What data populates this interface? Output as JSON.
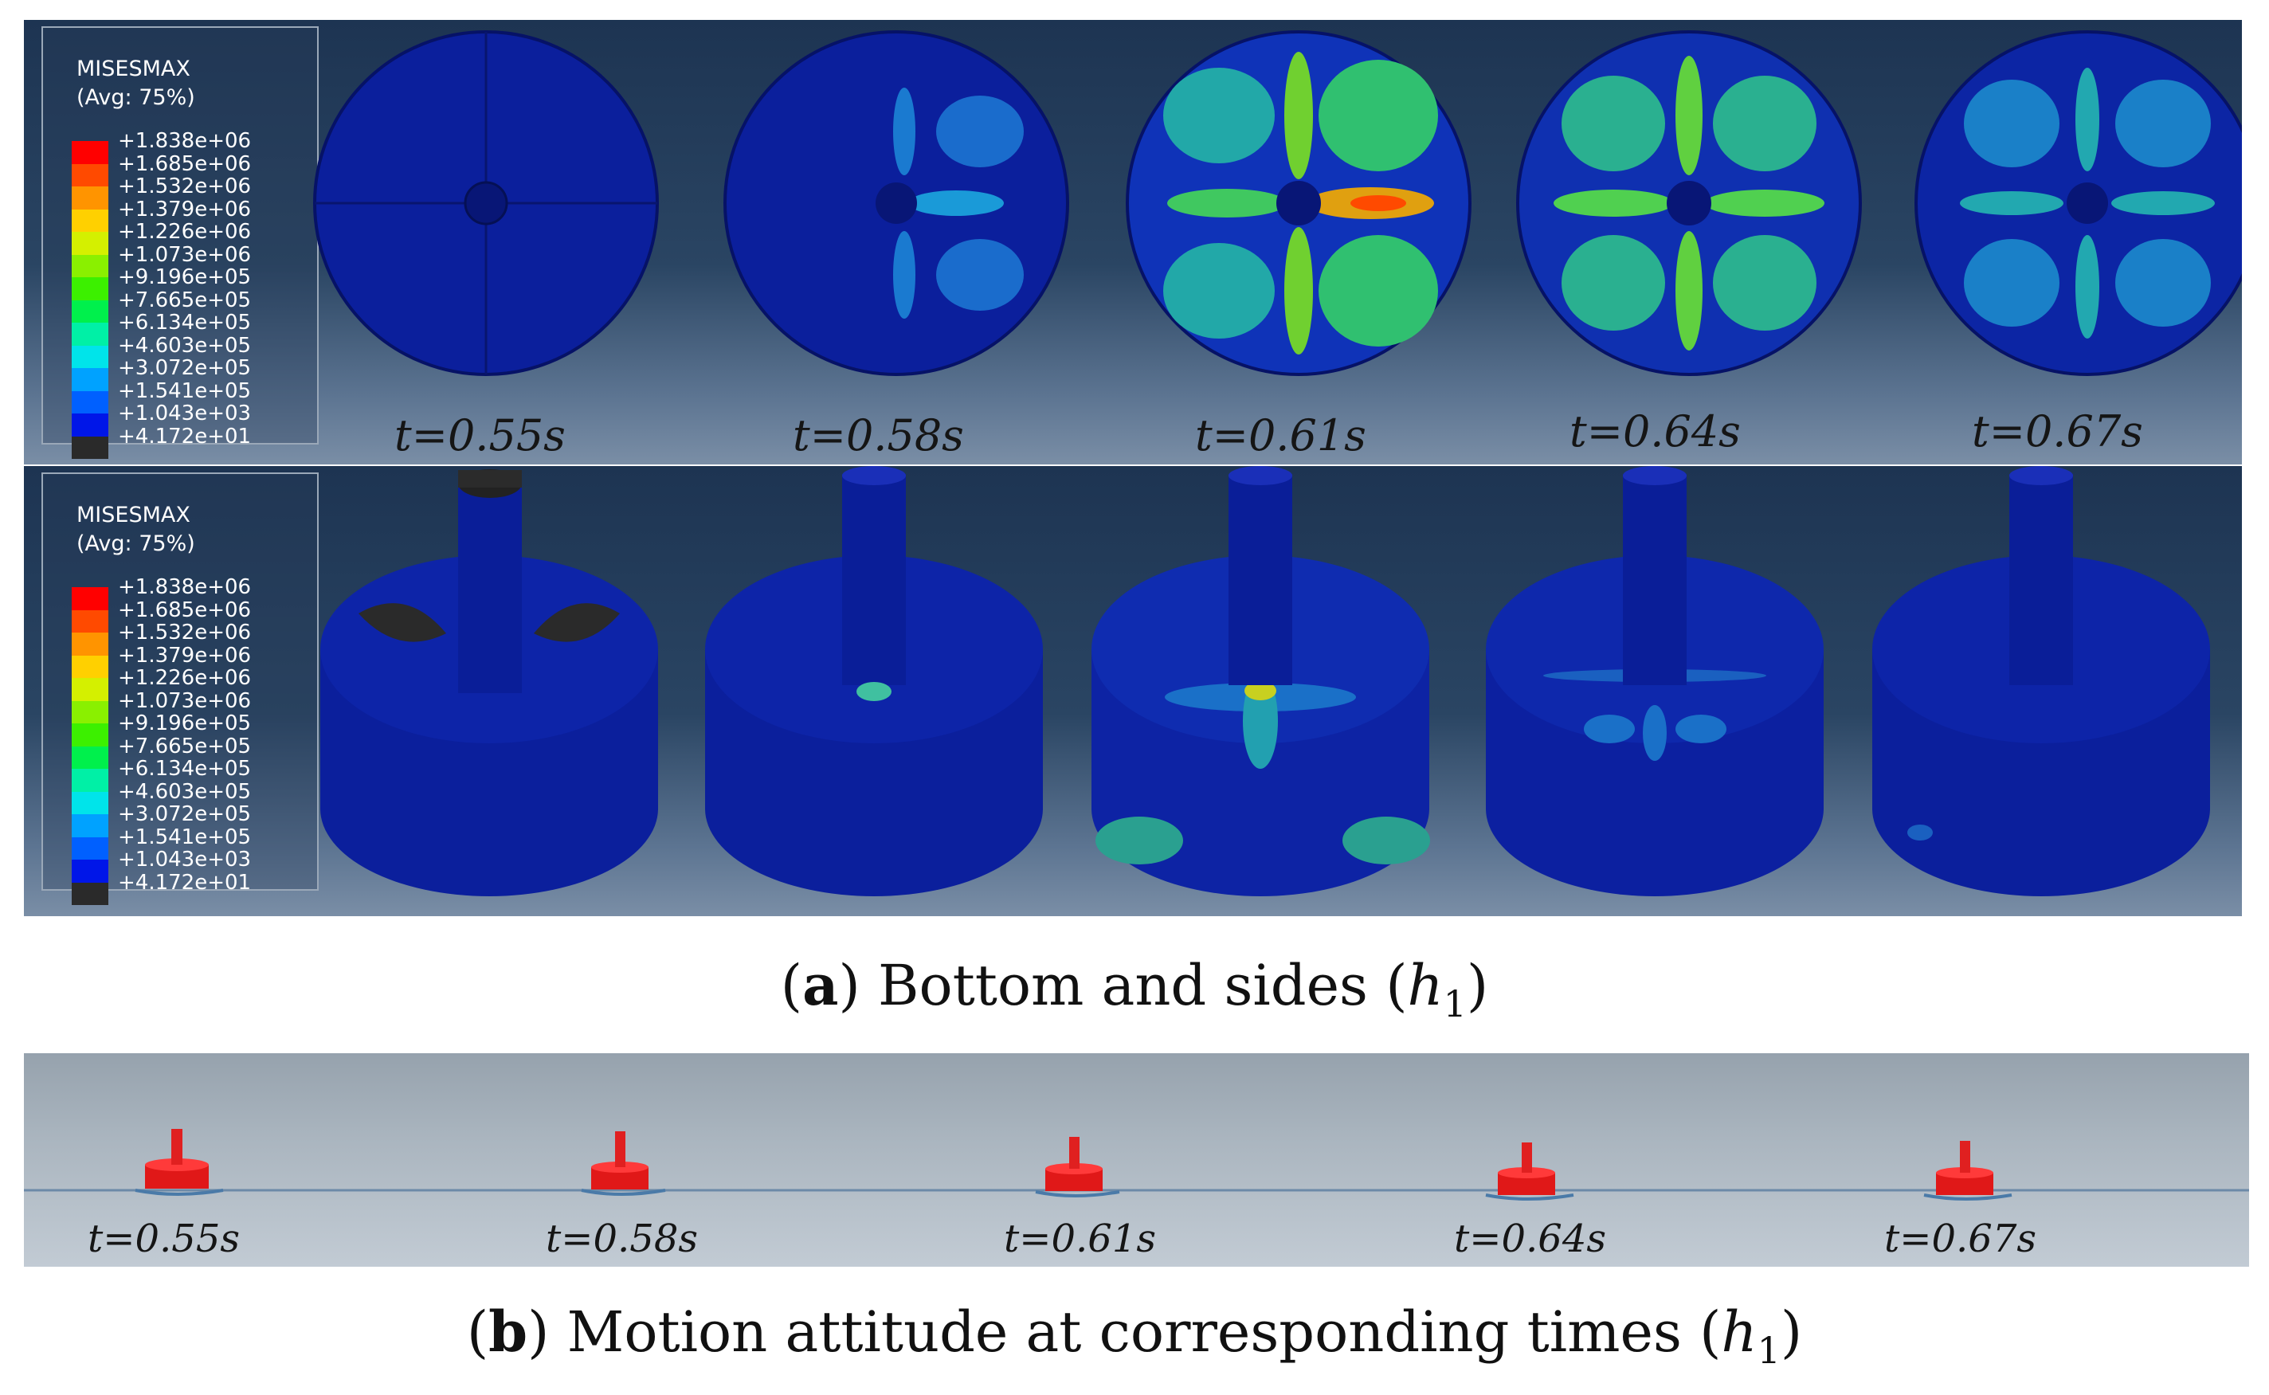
{
  "figure": {
    "legend": {
      "title": "MISESMAX",
      "subtitle": "(Avg: 75%)",
      "values": [
        "+1.838e+06",
        "+1.685e+06",
        "+1.532e+06",
        "+1.379e+06",
        "+1.226e+06",
        "+1.073e+06",
        "+9.196e+05",
        "+7.665e+05",
        "+6.134e+05",
        "+4.603e+05",
        "+3.072e+05",
        "+1.541e+05",
        "+1.043e+03",
        "+4.172e+01"
      ],
      "colors": [
        "#ff0000",
        "#ff4a00",
        "#ff9400",
        "#ffd000",
        "#d4f000",
        "#8af000",
        "#3cf000",
        "#00f04c",
        "#00f0a6",
        "#00e4ea",
        "#00a2ff",
        "#0060ff",
        "#0016e8",
        "#2a2a2a"
      ]
    },
    "times": [
      "t=0.55s",
      "t=0.58s",
      "t=0.61s",
      "t=0.64s",
      "t=0.67s"
    ],
    "caption_a": {
      "letter": "a",
      "text": "Bottom and sides",
      "var": "h",
      "sub": "1"
    },
    "caption_b": {
      "letter": "b",
      "text": "Motion attitude at corresponding times",
      "var": "h",
      "sub": "1"
    }
  }
}
